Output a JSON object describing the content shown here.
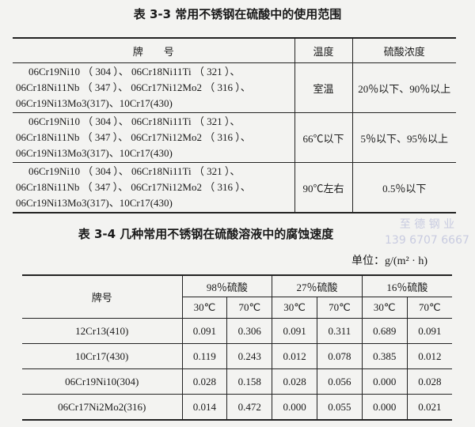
{
  "table1": {
    "title": "表 3-3   常用不锈钢在硫酸中的使用范围",
    "headers": [
      "牌　　号",
      "温度",
      "硫酸浓度"
    ],
    "rows": [
      {
        "grades": [
          "06Cr19Ni10 （ 304 ）、 06Cr18Ni11Ti （ 321 ）、",
          "06Cr18Ni11Nb （ 347 ）、 06Cr17Ni12Mo2 （ 316 ）、",
          "06Cr19Ni13Mo3(317)、10Cr17(430)"
        ],
        "temp": "室温",
        "conc": "20％以下、90％以上"
      },
      {
        "grades": [
          "06Cr19Ni10 （ 304 ）、 06Cr18Ni11Ti （ 321 ）、",
          "06Cr18Ni11Nb （ 347 ）、 06Cr17Ni12Mo2 （ 316 ）、",
          "06Cr19Ni13Mo3(317)、10Cr17(430)"
        ],
        "temp": "66℃以下",
        "conc": "5％以下、95％以上"
      },
      {
        "grades": [
          "06Cr19Ni10 （ 304 ）、 06Cr18Ni11Ti （ 321 ）、",
          "06Cr18Ni11Nb （ 347 ）、 06Cr17Ni12Mo2 （ 316 ）、",
          "06Cr19Ni13Mo3(317)、10Cr17(430)"
        ],
        "temp": "90℃左右",
        "conc": "0.5％以下"
      }
    ]
  },
  "table2": {
    "title": "表 3-4   几种常用不锈钢在硫酸溶液中的腐蚀速度",
    "unit": "单位：g/(m² · h)",
    "grade_header": "牌号",
    "groups": [
      "98％硫酸",
      "27％硫酸",
      "16％硫酸"
    ],
    "temps": [
      "30℃",
      "70℃",
      "30℃",
      "70℃",
      "30℃",
      "70℃"
    ],
    "rows": [
      {
        "grade": "12Cr13(410)",
        "values": [
          "0.091",
          "0.306",
          "0.091",
          "0.311",
          "0.689",
          "0.091"
        ]
      },
      {
        "grade": "10Cr17(430)",
        "values": [
          "0.119",
          "0.243",
          "0.012",
          "0.078",
          "0.385",
          "0.012"
        ]
      },
      {
        "grade": "06Cr19Ni10(304)",
        "values": [
          "0.028",
          "0.158",
          "0.028",
          "0.056",
          "0.000",
          "0.028"
        ]
      },
      {
        "grade": "06Cr17Ni2Mo2(316)",
        "values": [
          "0.014",
          "0.472",
          "0.000",
          "0.055",
          "0.000",
          "0.021"
        ]
      }
    ]
  },
  "watermark": {
    "name": "至 德 钢 业",
    "phone": "139 6707 6667"
  }
}
